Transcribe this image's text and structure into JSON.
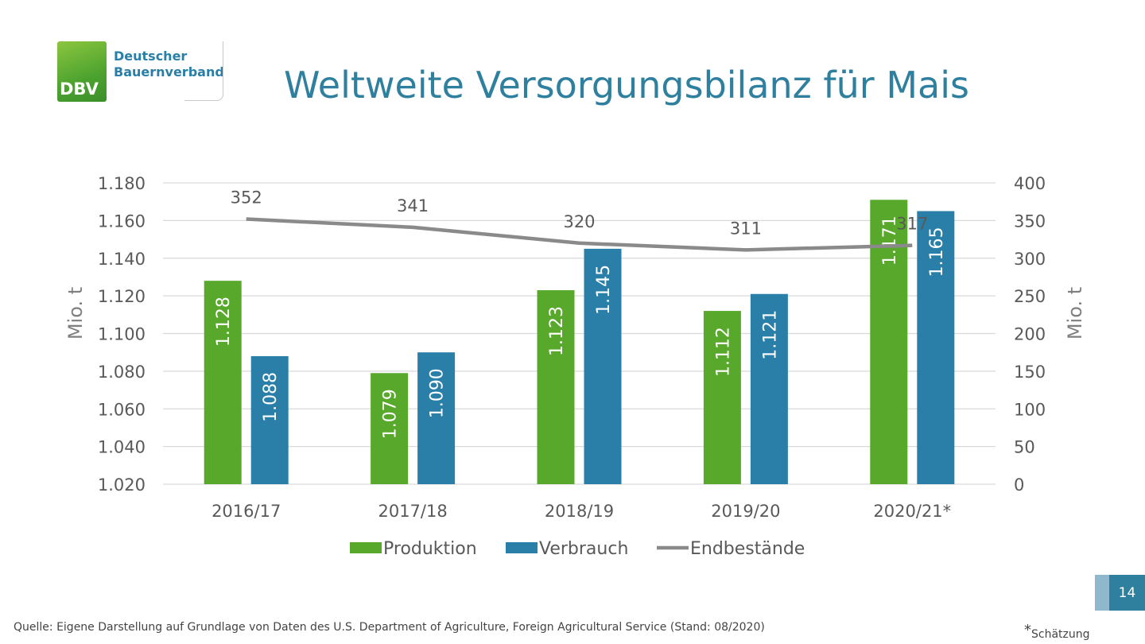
{
  "logo": {
    "org_line1": "Deutscher",
    "org_line2": "Bauernverband",
    "mark": "DBV"
  },
  "title": "Weltweite Versorgungsbilanz für Mais",
  "source": "Quelle: Eigene Darstellung auf Grundlage von Daten des U.S. Department of Agriculture, Foreign Agricultural Service (Stand: 08/2020)",
  "footnote": {
    "star": "*",
    "text": "Schätzung"
  },
  "page_number": "14",
  "colors": {
    "production": "#57a82b",
    "consumption": "#2a7fa8",
    "stocks": "#8a8a8a",
    "title": "#2f7f9f"
  },
  "chart_data": {
    "type": "bar",
    "categories": [
      "2016/17",
      "2017/18",
      "2018/19",
      "2019/20",
      "2020/21*"
    ],
    "series": [
      {
        "name": "Produktion",
        "type": "bar",
        "axis": "left",
        "values": [
          1128,
          1079,
          1123,
          1112,
          1171
        ],
        "labels": [
          "1.128",
          "1.079",
          "1.123",
          "1.112",
          "1.171"
        ]
      },
      {
        "name": "Verbrauch",
        "type": "bar",
        "axis": "left",
        "values": [
          1088,
          1090,
          1145,
          1121,
          1165
        ],
        "labels": [
          "1.088",
          "1.090",
          "1.145",
          "1.121",
          "1.165"
        ]
      },
      {
        "name": "Endbestände",
        "type": "line",
        "axis": "right",
        "values": [
          352,
          341,
          320,
          311,
          317
        ],
        "labels": [
          "352",
          "341",
          "320",
          "311",
          "317"
        ]
      }
    ],
    "ylabel_left": "Mio. t",
    "ylabel_right": "Mio. t",
    "ylim_left": [
      1020,
      1180
    ],
    "ylim_right": [
      0,
      400
    ],
    "yticks_left": [
      "1.020",
      "1.040",
      "1.060",
      "1.080",
      "1.100",
      "1.120",
      "1.140",
      "1.160",
      "1.180"
    ],
    "yticks_right": [
      "0",
      "50",
      "100",
      "150",
      "200",
      "250",
      "300",
      "350",
      "400"
    ],
    "grid": true,
    "legend_position": "bottom"
  }
}
